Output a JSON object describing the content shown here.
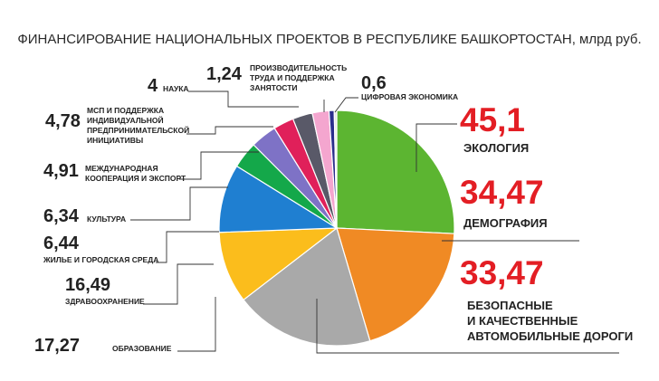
{
  "chart_data": {
    "type": "pie",
    "title": "ФИНАНСИРОВАНИЕ НАЦИОНАЛЬНЫХ ПРОЕКТОВ В РЕСПУБЛИКЕ БАШКОРТОСТАН, млрд руб.",
    "unit": "млрд руб.",
    "slices": [
      {
        "label": "ЭКОЛОГИЯ",
        "value_label": "45,1",
        "value": 45.1,
        "color": "#5cb531"
      },
      {
        "label": "ДЕМОГРАФИЯ",
        "value_label": "34,47",
        "value": 34.47,
        "color": "#f08a24"
      },
      {
        "label": "БЕЗОПАСНЫЕ И КАЧЕСТВЕННЫЕ АВТОМОБИЛЬНЫЕ ДОРОГИ",
        "value_label": "33,47",
        "value": 33.47,
        "color": "#a9a9a9"
      },
      {
        "label": "ОБРАЗОВАНИЕ",
        "value_label": "17,27",
        "value": 17.27,
        "color": "#fbbd1c"
      },
      {
        "label": "ЗДРАВООХРАНЕНИЕ",
        "value_label": "16,49",
        "value": 16.49,
        "color": "#1f7fd1"
      },
      {
        "label": "ЖИЛЬЕ И ГОРОДСКАЯ СРЕДА",
        "value_label": "6,44",
        "value": 6.44,
        "color": "#14a84a"
      },
      {
        "label": "КУЛЬТУРА",
        "value_label": "6,34",
        "value": 6.34,
        "color": "#7e72c6"
      },
      {
        "label": "МЕЖДУНАРОДНАЯ КООПЕРАЦИЯ И ЭКСПОРТ",
        "value_label": "4,91",
        "value": 4.91,
        "color": "#e0205a"
      },
      {
        "label": "МСП И ПОДДЕРЖКА ИНДИВИДУАЛЬНОЙ ПРЕДПРИНИМАТЕЛЬСКОЙ ИНИЦИАТИВЫ",
        "value_label": "4,78",
        "value": 4.78,
        "color": "#595968"
      },
      {
        "label": "НАУКА",
        "value_label": "4",
        "value": 4,
        "color": "#f4a6cf"
      },
      {
        "label": "ПРОИЗВОДИТЕЛЬНОСТЬ ТРУДА И ПОДДЕРЖКА ЗАНЯТОСТИ",
        "value_label": "1,24",
        "value": 1.24,
        "color": "#2a2d8c"
      },
      {
        "label": "ЦИФРОВАЯ ЭКОНОМИКА",
        "value_label": "0,6",
        "value": 0.6,
        "color": "#e8e8e8"
      }
    ]
  }
}
